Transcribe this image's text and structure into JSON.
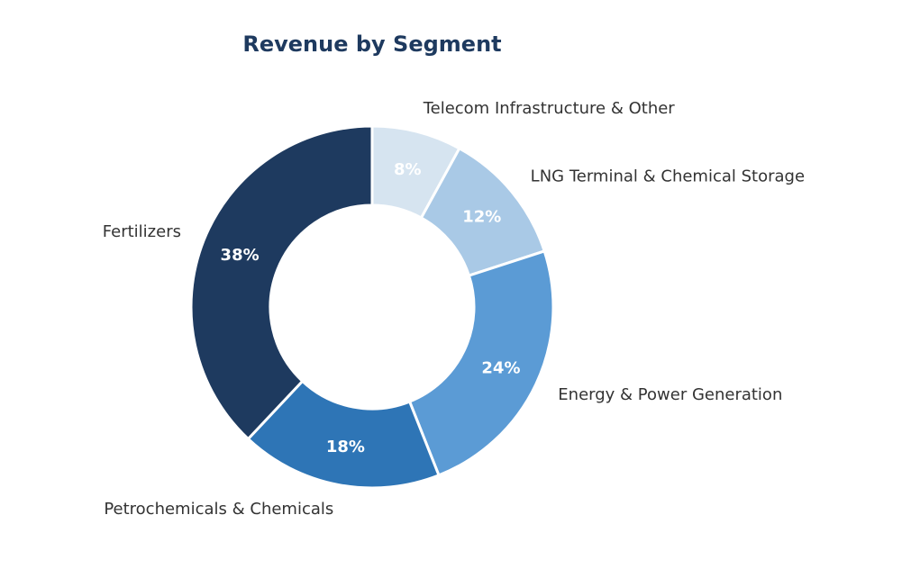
{
  "chart_data": {
    "type": "pie",
    "title": "Revenue by Segment",
    "donut": true,
    "legend": "none",
    "slices": [
      {
        "label": "Fertilizers",
        "value": 38,
        "pct_label": "38%",
        "color": "#1e3a5f"
      },
      {
        "label": "Petrochemicals & Chemicals",
        "value": 18,
        "pct_label": "18%",
        "color": "#2e75b6"
      },
      {
        "label": "Energy & Power Generation",
        "value": 24,
        "pct_label": "24%",
        "color": "#5b9bd5"
      },
      {
        "label": "LNG Terminal & Chemical Storage",
        "value": 12,
        "pct_label": "12%",
        "color": "#a9c9e6"
      },
      {
        "label": "Telecom Infrastructure & Other",
        "value": 8,
        "pct_label": "8%",
        "color": "#d6e4f0"
      }
    ]
  }
}
